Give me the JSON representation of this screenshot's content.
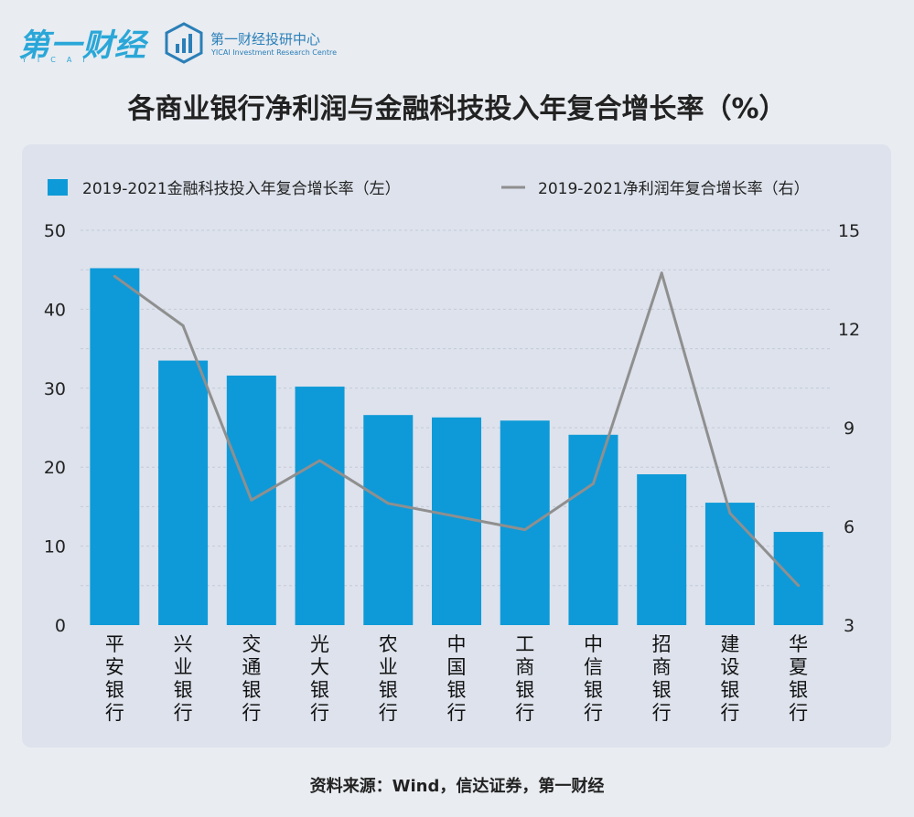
{
  "header": {
    "logo_text": "第一财经",
    "logo_sub": "YICAI",
    "research_name": "第一财经投研中心",
    "research_en": "YICAI Investment Research Centre"
  },
  "title": "各商业银行净利润与金融科技投入年复合增长率（%）",
  "source": "资料来源：Wind，信达证券，第一财经",
  "colors": {
    "bar": "#0e9ad8",
    "line": "#8f8f8f",
    "accent": "#2aa7d8"
  },
  "chart_data": {
    "type": "bar",
    "categories": [
      "平安银行",
      "兴业银行",
      "交通银行",
      "光大银行",
      "农业银行",
      "中国银行",
      "工商银行",
      "中信银行",
      "招商银行",
      "建设银行",
      "华夏银行"
    ],
    "series": [
      {
        "name": "2019-2021金融科技投入年复合增长率（左）",
        "type": "bar",
        "axis": "left",
        "values": [
          45.2,
          33.5,
          31.6,
          30.2,
          26.6,
          26.3,
          25.9,
          24.1,
          19.1,
          15.5,
          11.8
        ]
      },
      {
        "name": "2019-2021净利润年复合增长率（右）",
        "type": "line",
        "axis": "right",
        "values": [
          13.6,
          12.1,
          6.8,
          8.0,
          6.7,
          6.3,
          5.9,
          7.3,
          13.7,
          6.4,
          4.2
        ]
      }
    ],
    "y_left": {
      "ticks": [
        0,
        10,
        20,
        30,
        40,
        50
      ],
      "lim": [
        0,
        50
      ]
    },
    "y_right": {
      "ticks": [
        3,
        6,
        9,
        12,
        15
      ],
      "lim": [
        3,
        15
      ]
    },
    "legend_position": "top",
    "grid": true
  }
}
